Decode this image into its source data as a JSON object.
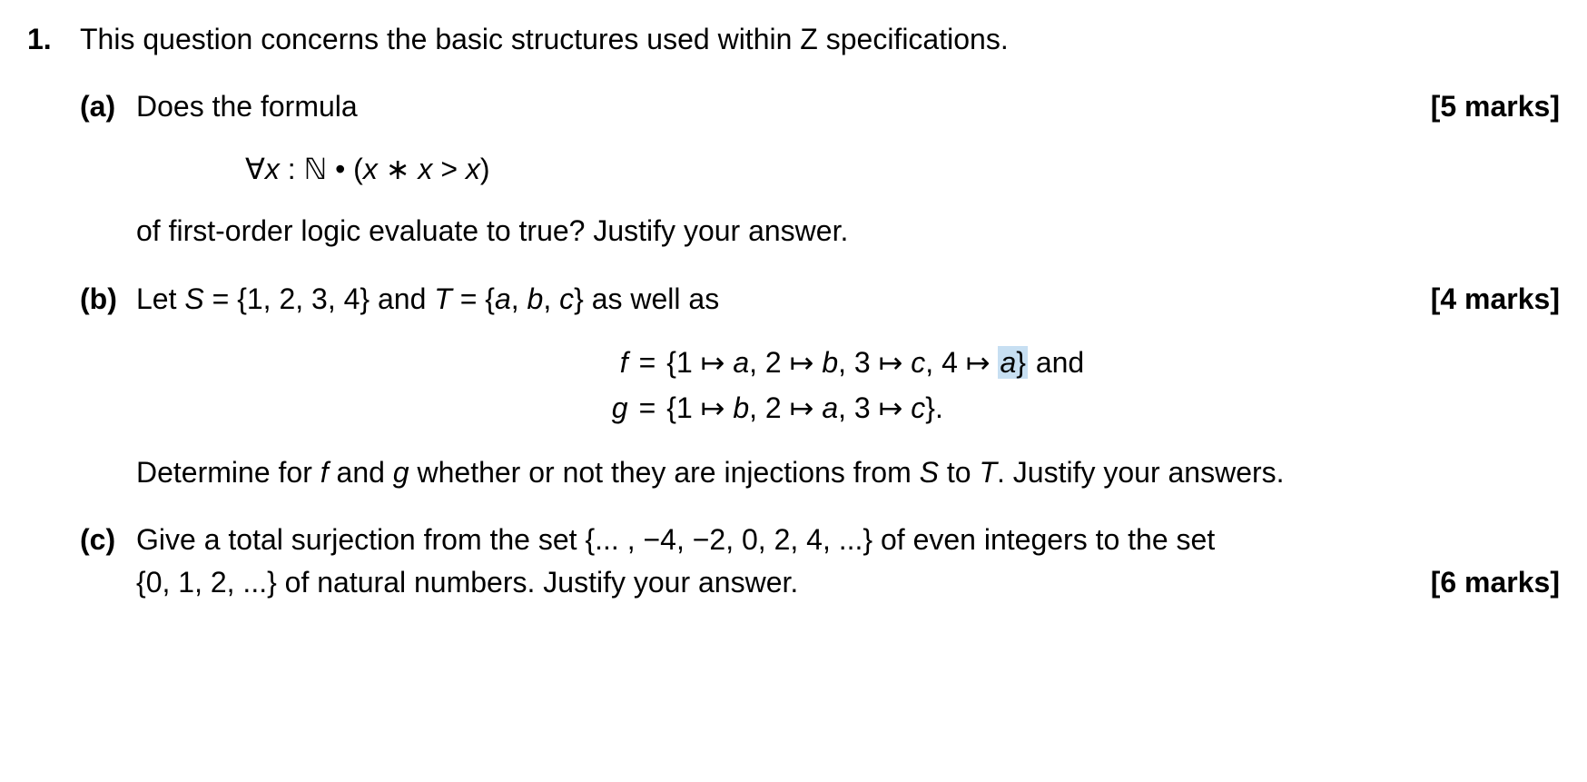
{
  "text_color": "#000000",
  "background_color": "#ffffff",
  "highlight_color": "#c7dff2",
  "font_size_pt": 24,
  "font_family": "Arial",
  "question": {
    "number": "1.",
    "intro": "This question concerns the basic structures used within Z specifications."
  },
  "parts": {
    "a": {
      "label": "(a)",
      "lead": "Does the formula",
      "marks": "[5 marks]",
      "formula": "∀x : ℕ • (x ∗ x > x)",
      "formula_parts": {
        "forall": "∀",
        "var": "x",
        "colon": ":",
        "nat": "ℕ",
        "bullet": "•",
        "open": "(",
        "v1": "x",
        "ast": "∗",
        "v2": "x",
        "gt": ">",
        "v3": "x",
        "close": ")"
      },
      "follow": "of first-order logic evaluate to true? Justify your answer."
    },
    "b": {
      "label": "(b)",
      "lead_pre": "Let ",
      "S_name": "S",
      "eq": " = ",
      "S_set": "{1, 2, 3, 4}",
      "and1": " and ",
      "T_name": "T",
      "T_set": "{a, b, c}",
      "lead_post": " as well as",
      "marks": "[4 marks]",
      "f_name": "f",
      "f_open": "{",
      "f_m1_k": "1",
      "f_m1_v": "a",
      "f_m2_k": "2",
      "f_m2_v": "b",
      "f_m3_k": "3",
      "f_m3_v": "c",
      "f_m4_k": "4",
      "f_m4_v": "a",
      "f_close": "}",
      "f_tail": " and",
      "g_name": "g",
      "g_open": "{",
      "g_m1_k": "1",
      "g_m1_v": "b",
      "g_m2_k": "2",
      "g_m2_v": "a",
      "g_m3_k": "3",
      "g_m3_v": "c",
      "g_close": "}.",
      "mapsto": "↦",
      "follow_pre": "Determine for ",
      "follow_f": "f",
      "follow_and": " and ",
      "follow_g": "g",
      "follow_mid": " whether or not they are injections from ",
      "follow_S": "S",
      "follow_to": " to ",
      "follow_T": "T",
      "follow_post": ".  Justify your answers."
    },
    "c": {
      "label": "(c)",
      "line1": "Give a total surjection from the set {... , −4, −2, 0, 2, 4, ...} of even integers to the set",
      "line2_text": "{0, 1, 2, ...} of natural numbers. Justify your answer.",
      "marks": "[6 marks]"
    }
  }
}
